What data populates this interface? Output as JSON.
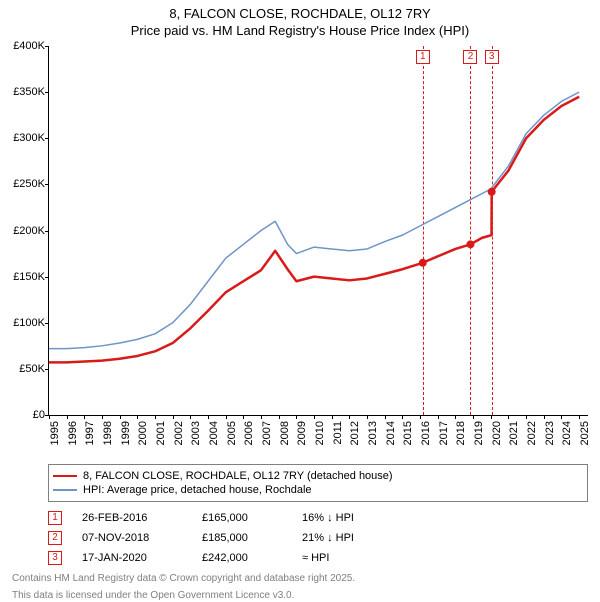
{
  "title": "8, FALCON CLOSE, ROCHDALE, OL12 7RY",
  "subtitle": "Price paid vs. HM Land Registry's House Price Index (HPI)",
  "chart": {
    "type": "line",
    "xlim": [
      1995,
      2025.5
    ],
    "ylim": [
      0,
      400000
    ],
    "ytick_step": 50000,
    "ytick_labels": [
      "£0",
      "£50K",
      "£100K",
      "£150K",
      "£200K",
      "£250K",
      "£300K",
      "£350K",
      "£400K"
    ],
    "xticks": [
      1995,
      1996,
      1997,
      1998,
      1999,
      2000,
      2001,
      2002,
      2003,
      2004,
      2005,
      2006,
      2007,
      2008,
      2009,
      2010,
      2011,
      2012,
      2013,
      2014,
      2015,
      2016,
      2017,
      2018,
      2019,
      2020,
      2021,
      2022,
      2023,
      2024,
      2025
    ],
    "background_color": "#ffffff",
    "series": [
      {
        "name": "hpi",
        "color": "#6e95c8",
        "width": 1.5,
        "points": [
          [
            1995,
            72000
          ],
          [
            1996,
            72000
          ],
          [
            1997,
            73000
          ],
          [
            1998,
            75000
          ],
          [
            1999,
            78000
          ],
          [
            2000,
            82000
          ],
          [
            2001,
            88000
          ],
          [
            2002,
            100000
          ],
          [
            2003,
            120000
          ],
          [
            2004,
            145000
          ],
          [
            2005,
            170000
          ],
          [
            2006,
            185000
          ],
          [
            2007,
            200000
          ],
          [
            2007.8,
            210000
          ],
          [
            2008.5,
            185000
          ],
          [
            2009,
            175000
          ],
          [
            2010,
            182000
          ],
          [
            2011,
            180000
          ],
          [
            2012,
            178000
          ],
          [
            2013,
            180000
          ],
          [
            2014,
            188000
          ],
          [
            2015,
            195000
          ],
          [
            2016,
            205000
          ],
          [
            2017,
            215000
          ],
          [
            2018,
            225000
          ],
          [
            2019,
            235000
          ],
          [
            2020,
            245000
          ],
          [
            2021,
            270000
          ],
          [
            2022,
            305000
          ],
          [
            2023,
            325000
          ],
          [
            2024,
            340000
          ],
          [
            2025,
            350000
          ]
        ]
      },
      {
        "name": "property",
        "color": "#d91a1a",
        "width": 2.5,
        "points": [
          [
            1995,
            57000
          ],
          [
            1996,
            57000
          ],
          [
            1997,
            58000
          ],
          [
            1998,
            59000
          ],
          [
            1999,
            61000
          ],
          [
            2000,
            64000
          ],
          [
            2001,
            69000
          ],
          [
            2002,
            78000
          ],
          [
            2003,
            94000
          ],
          [
            2004,
            113000
          ],
          [
            2005,
            133000
          ],
          [
            2006,
            145000
          ],
          [
            2007,
            157000
          ],
          [
            2007.8,
            178000
          ],
          [
            2008.5,
            158000
          ],
          [
            2009,
            145000
          ],
          [
            2010,
            150000
          ],
          [
            2011,
            148000
          ],
          [
            2012,
            146000
          ],
          [
            2013,
            148000
          ],
          [
            2014,
            153000
          ],
          [
            2015,
            158000
          ],
          [
            2016.15,
            165000
          ],
          [
            2017,
            172000
          ],
          [
            2018,
            180000
          ],
          [
            2018.85,
            185000
          ],
          [
            2019.5,
            192000
          ],
          [
            2020.04,
            195000
          ],
          [
            2020.05,
            242000
          ],
          [
            2021,
            265000
          ],
          [
            2022,
            300000
          ],
          [
            2023,
            320000
          ],
          [
            2024,
            335000
          ],
          [
            2025,
            345000
          ]
        ]
      }
    ],
    "sale_markers": [
      {
        "num": "1",
        "x": 2016.15,
        "y": 165000,
        "color": "#d91a1a"
      },
      {
        "num": "2",
        "x": 2018.85,
        "y": 185000,
        "color": "#d91a1a"
      },
      {
        "num": "3",
        "x": 2020.05,
        "y": 242000,
        "color": "#d91a1a"
      }
    ]
  },
  "legend": {
    "items": [
      {
        "color": "#d91a1a",
        "width": 2.5,
        "label": "8, FALCON CLOSE, ROCHDALE, OL12 7RY (detached house)"
      },
      {
        "color": "#6e95c8",
        "width": 1.5,
        "label": "HPI: Average price, detached house, Rochdale"
      }
    ]
  },
  "sales": [
    {
      "num": "1",
      "color": "#d91a1a",
      "date": "26-FEB-2016",
      "price": "£165,000",
      "pct": "16% ↓ HPI"
    },
    {
      "num": "2",
      "color": "#d91a1a",
      "date": "07-NOV-2018",
      "price": "£185,000",
      "pct": "21% ↓ HPI"
    },
    {
      "num": "3",
      "color": "#d91a1a",
      "date": "17-JAN-2020",
      "price": "£242,000",
      "pct": "≈ HPI"
    }
  ],
  "footer1": "Contains HM Land Registry data © Crown copyright and database right 2025.",
  "footer2": "This data is licensed under the Open Government Licence v3.0."
}
